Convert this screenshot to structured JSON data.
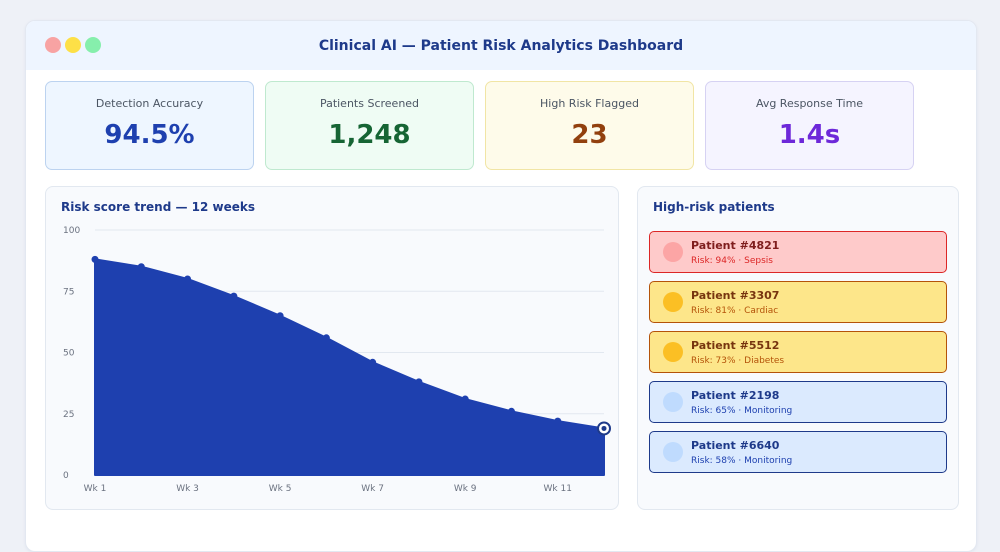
{
  "window": {
    "title": "Clinical AI — Patient Risk Analytics Dashboard"
  },
  "metrics": [
    {
      "label": "Detection Accuracy",
      "value": "94.5%"
    },
    {
      "label": "Patients Screened",
      "value": "1,248"
    },
    {
      "label": "High Risk Flagged",
      "value": "23"
    },
    {
      "label": "Avg Response Time",
      "value": "1.4s"
    }
  ],
  "trend_panel": {
    "title": "Risk score trend — 12 weeks"
  },
  "chart_data": {
    "type": "area",
    "title": "Risk score trend — 12 weeks",
    "x": [
      "Wk 1",
      "Wk 2",
      "Wk 3",
      "Wk 4",
      "Wk 5",
      "Wk 6",
      "Wk 7",
      "Wk 8",
      "Wk 9",
      "Wk 10",
      "Wk 11",
      "Wk 12"
    ],
    "x_tick_labels": [
      "Wk 1",
      "Wk 3",
      "Wk 5",
      "Wk 7",
      "Wk 9",
      "Wk 11"
    ],
    "series": [
      {
        "values": [
          88,
          85,
          80,
          73,
          65,
          56,
          46,
          38,
          31,
          26,
          22,
          19
        ]
      }
    ],
    "y_ticks": [
      0,
      25,
      50,
      75,
      100
    ],
    "ylim": [
      0,
      100
    ],
    "grid": true,
    "color": "#1e40af"
  },
  "patients_panel": {
    "title": "High-risk patients"
  },
  "patients": [
    {
      "name": "Patient #4821",
      "detail": "Risk: 94% · Sepsis",
      "level": "critical"
    },
    {
      "name": "Patient #3307",
      "detail": "Risk: 81% · Cardiac",
      "level": "high"
    },
    {
      "name": "Patient #5512",
      "detail": "Risk: 73% · Diabetes",
      "level": "high"
    },
    {
      "name": "Patient #2198",
      "detail": "Risk: 65% · Monitoring",
      "level": "moderate"
    },
    {
      "name": "Patient #6640",
      "detail": "Risk: 58% · Monitoring",
      "level": "moderate"
    }
  ],
  "level_colors": {
    "critical": {
      "bg": "#fecaca",
      "border": "#dc2626",
      "dot": "#fca5a5",
      "name": "#7f1d1d",
      "detail": "#dc2626"
    },
    "high": {
      "bg": "#fde68a",
      "border": "#b45309",
      "dot": "#fbbf24",
      "name": "#78350f",
      "detail": "#b45309"
    },
    "moderate": {
      "bg": "#dbeafe",
      "border": "#1e3a8a",
      "dot": "#bfdbfe",
      "name": "#1e3a8a",
      "detail": "#1e40af"
    }
  }
}
